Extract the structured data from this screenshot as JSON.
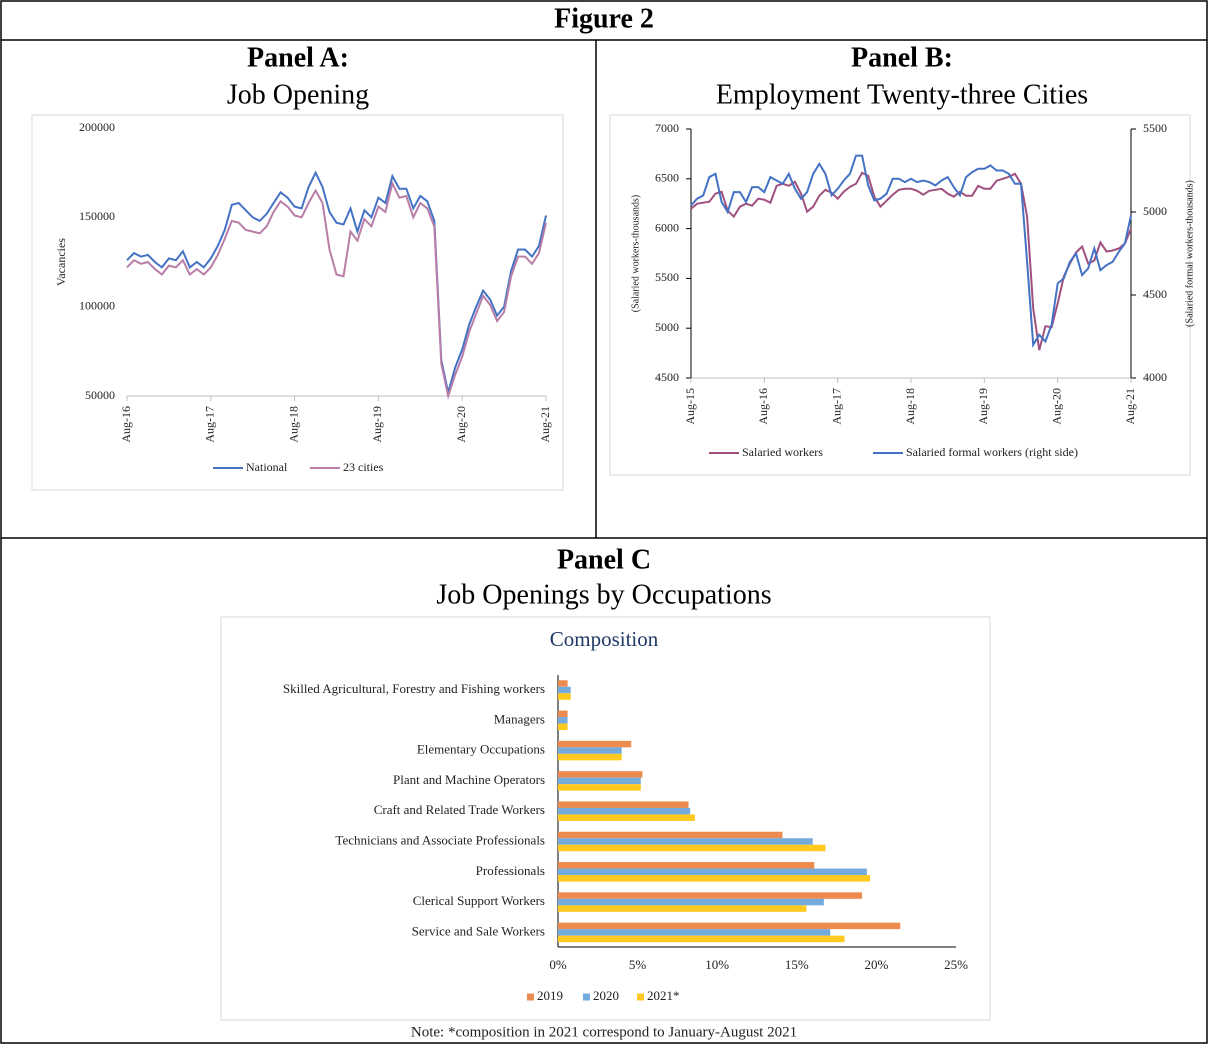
{
  "title": "Figure 2",
  "note": "Note: *composition in 2021 correspond to January-August 2021",
  "chart_data": [
    {
      "type": "line",
      "title": "Panel A:",
      "subtitle": "Job Opening",
      "ylabel": "Vacancies",
      "categories": [
        "Aug-16",
        null,
        null,
        null,
        null,
        null,
        null,
        null,
        null,
        null,
        null,
        null,
        "Aug-17",
        null,
        null,
        null,
        null,
        null,
        null,
        null,
        null,
        null,
        null,
        null,
        "Aug-18",
        null,
        null,
        null,
        null,
        null,
        null,
        null,
        null,
        null,
        null,
        null,
        "Aug-19",
        null,
        null,
        null,
        null,
        null,
        null,
        null,
        null,
        null,
        null,
        null,
        "Aug-20",
        null,
        null,
        null,
        null,
        null,
        null,
        null,
        null,
        null,
        null,
        null,
        "Aug-21"
      ],
      "series": [
        {
          "name": "National",
          "color": "#4472c4",
          "values": [
            126000,
            130000,
            128000,
            129000,
            125000,
            122000,
            127000,
            126000,
            131000,
            122000,
            125000,
            122000,
            127000,
            134000,
            143000,
            157000,
            158000,
            154000,
            150000,
            148000,
            152000,
            158000,
            164000,
            161000,
            156000,
            155000,
            167000,
            175000,
            167000,
            153000,
            147000,
            146000,
            155000,
            142000,
            154000,
            150000,
            161000,
            158000,
            173000,
            166000,
            166000,
            155000,
            162000,
            159000,
            148000,
            70000,
            52000,
            66000,
            76000,
            90000,
            100000,
            109000,
            104000,
            95000,
            100000,
            120000,
            132000,
            132000,
            128000,
            134000,
            151000
          ]
        },
        {
          "name": "23 cities",
          "color": "#b87ea8",
          "values": [
            122000,
            126000,
            124000,
            125000,
            121000,
            118000,
            123000,
            122000,
            126000,
            118000,
            121000,
            118000,
            122000,
            129000,
            138000,
            148000,
            147000,
            143000,
            142000,
            141000,
            145000,
            153000,
            159000,
            156000,
            151000,
            150000,
            158000,
            165000,
            158000,
            132000,
            118000,
            117000,
            142000,
            137000,
            149000,
            145000,
            156000,
            153000,
            169000,
            161000,
            162000,
            150000,
            158000,
            155000,
            145000,
            68000,
            50000,
            62000,
            72000,
            86000,
            96000,
            106000,
            101000,
            92000,
            97000,
            117000,
            128000,
            128000,
            124000,
            130000,
            147000
          ]
        }
      ],
      "ylim": [
        50000,
        200000
      ],
      "yticks": [
        50000,
        100000,
        150000,
        200000
      ],
      "grid": false,
      "legend": "bottom"
    },
    {
      "type": "line",
      "title": "Panel B:",
      "subtitle": "Employment Twenty-three Cities",
      "ylabel": "(Salaried workers-thousands)",
      "y2label": "(Salaried formal workers-thousands)",
      "categories": [
        "Aug-15",
        null,
        null,
        null,
        null,
        null,
        null,
        null,
        null,
        null,
        null,
        null,
        "Aug-16",
        null,
        null,
        null,
        null,
        null,
        null,
        null,
        null,
        null,
        null,
        null,
        "Aug-17",
        null,
        null,
        null,
        null,
        null,
        null,
        null,
        null,
        null,
        null,
        null,
        "Aug-18",
        null,
        null,
        null,
        null,
        null,
        null,
        null,
        null,
        null,
        null,
        null,
        "Aug-19",
        null,
        null,
        null,
        null,
        null,
        null,
        null,
        null,
        null,
        null,
        null,
        "Aug-20",
        null,
        null,
        null,
        null,
        null,
        null,
        null,
        null,
        null,
        null,
        null,
        "Aug-21"
      ],
      "series": [
        {
          "name": "Salaried workers",
          "color": "#a0507f",
          "values": [
            6200,
            6250,
            6260,
            6270,
            6350,
            6370,
            6180,
            6120,
            6220,
            6250,
            6230,
            6300,
            6290,
            6260,
            6430,
            6450,
            6430,
            6470,
            6350,
            6170,
            6220,
            6330,
            6390,
            6360,
            6300,
            6370,
            6420,
            6450,
            6560,
            6530,
            6320,
            6220,
            6280,
            6340,
            6390,
            6400,
            6400,
            6380,
            6340,
            6380,
            6390,
            6400,
            6350,
            6320,
            6370,
            6330,
            6330,
            6430,
            6400,
            6400,
            6480,
            6500,
            6520,
            6550,
            6450,
            6120,
            5200,
            4780,
            5020,
            5010,
            5250,
            5520,
            5650,
            5760,
            5820,
            5650,
            5680,
            5860,
            5770,
            5780,
            5800,
            5850,
            6000
          ]
        },
        {
          "name": "Salaried formal workers (right side)",
          "color": "#4472c4",
          "axis": "y2",
          "values": [
            5040,
            5080,
            5100,
            5210,
            5230,
            5060,
            5000,
            5120,
            5120,
            5060,
            5150,
            5150,
            5120,
            5210,
            5190,
            5170,
            5230,
            5140,
            5080,
            5120,
            5230,
            5290,
            5230,
            5100,
            5140,
            5190,
            5230,
            5340,
            5340,
            5160,
            5070,
            5080,
            5110,
            5200,
            5200,
            5180,
            5200,
            5180,
            5190,
            5180,
            5160,
            5190,
            5210,
            5150,
            5100,
            5210,
            5240,
            5260,
            5260,
            5280,
            5250,
            5250,
            5230,
            5170,
            5170,
            4700,
            4200,
            4260,
            4220,
            4320,
            4570,
            4600,
            4700,
            4750,
            4620,
            4660,
            4780,
            4650,
            4680,
            4700,
            4760,
            4810,
            4980
          ]
        }
      ],
      "ylim": [
        4500,
        7000
      ],
      "yticks": [
        4500,
        5000,
        5500,
        6000,
        6500,
        7000
      ],
      "y2lim": [
        4000,
        5500
      ],
      "y2ticks": [
        4000,
        4500,
        5000,
        5500
      ],
      "grid": false,
      "legend": "bottom"
    },
    {
      "type": "bar",
      "orientation": "horizontal",
      "title": "Panel C",
      "subtitle": "Job Openings by Occupations",
      "inner_title": "Composition",
      "categories": [
        "Skilled Agricultural, Forestry and Fishing workers",
        "Managers",
        "Elementary Occupations",
        "Plant and Machine Operators",
        "Craft and Related Trade Workers",
        "Technicians and Associate Professionals",
        "Professionals",
        "Clerical Support Workers",
        "Service and Sale Workers"
      ],
      "series": [
        {
          "name": "2019",
          "color": "#ed8b4f",
          "values": [
            0.6,
            0.6,
            4.6,
            5.3,
            8.2,
            14.1,
            16.1,
            19.1,
            21.5
          ]
        },
        {
          "name": "2020",
          "color": "#74abdd",
          "values": [
            0.8,
            0.6,
            4.0,
            5.2,
            8.3,
            16.0,
            19.4,
            16.7,
            17.1
          ]
        },
        {
          "name": "2021*",
          "color": "#ffc920",
          "values": [
            0.8,
            0.6,
            4.0,
            5.2,
            8.6,
            16.8,
            19.6,
            15.6,
            18.0
          ]
        }
      ],
      "xlim": [
        0,
        25
      ],
      "xticks": [
        {
          "value": 0,
          "label": "0%"
        },
        {
          "value": 5,
          "label": "5%"
        },
        {
          "value": 10,
          "label": "10%"
        },
        {
          "value": 15,
          "label": "15%"
        },
        {
          "value": 20,
          "label": "20%"
        },
        {
          "value": 25,
          "label": "25%"
        }
      ],
      "grid": false,
      "legend": "bottom"
    }
  ]
}
